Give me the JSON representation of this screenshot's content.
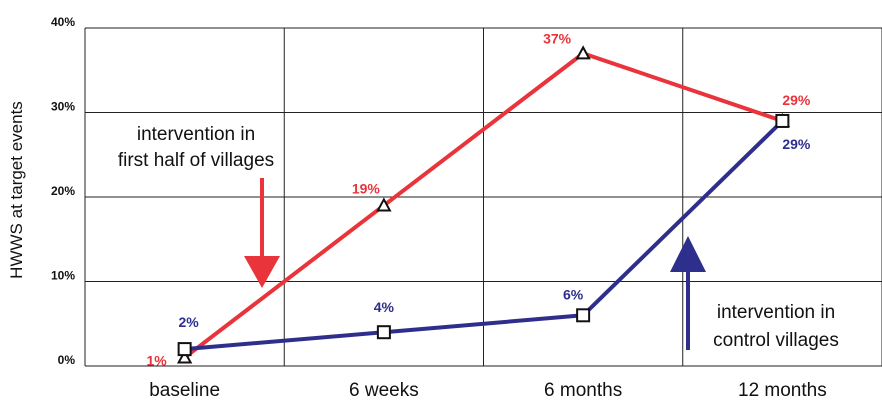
{
  "chart_data": {
    "type": "line",
    "categories": [
      "baseline",
      "6 weeks",
      "6 months",
      "12 months"
    ],
    "ylabel": "HWWS at target events",
    "ylim": [
      0,
      40
    ],
    "yticks": [
      "0%",
      "10%",
      "20%",
      "30%",
      "40%"
    ],
    "grid": true,
    "series": [
      {
        "values": [
          1,
          19,
          37,
          29
        ],
        "labels": [
          "1%",
          "19%",
          "37%",
          "29%"
        ],
        "color": "#e8343a",
        "marker": "triangle"
      },
      {
        "values": [
          2,
          4,
          6,
          29
        ],
        "labels": [
          "2%",
          "4%",
          "6%",
          "29%"
        ],
        "color": "#2e2f8c",
        "marker": "square"
      }
    ],
    "annotations": {
      "first": {
        "lines": [
          "intervention in",
          "first half of villages"
        ],
        "arrow_color": "#e8343a"
      },
      "control": {
        "lines": [
          "intervention in",
          "control villages"
        ],
        "arrow_color": "#2e2f8c"
      }
    }
  }
}
